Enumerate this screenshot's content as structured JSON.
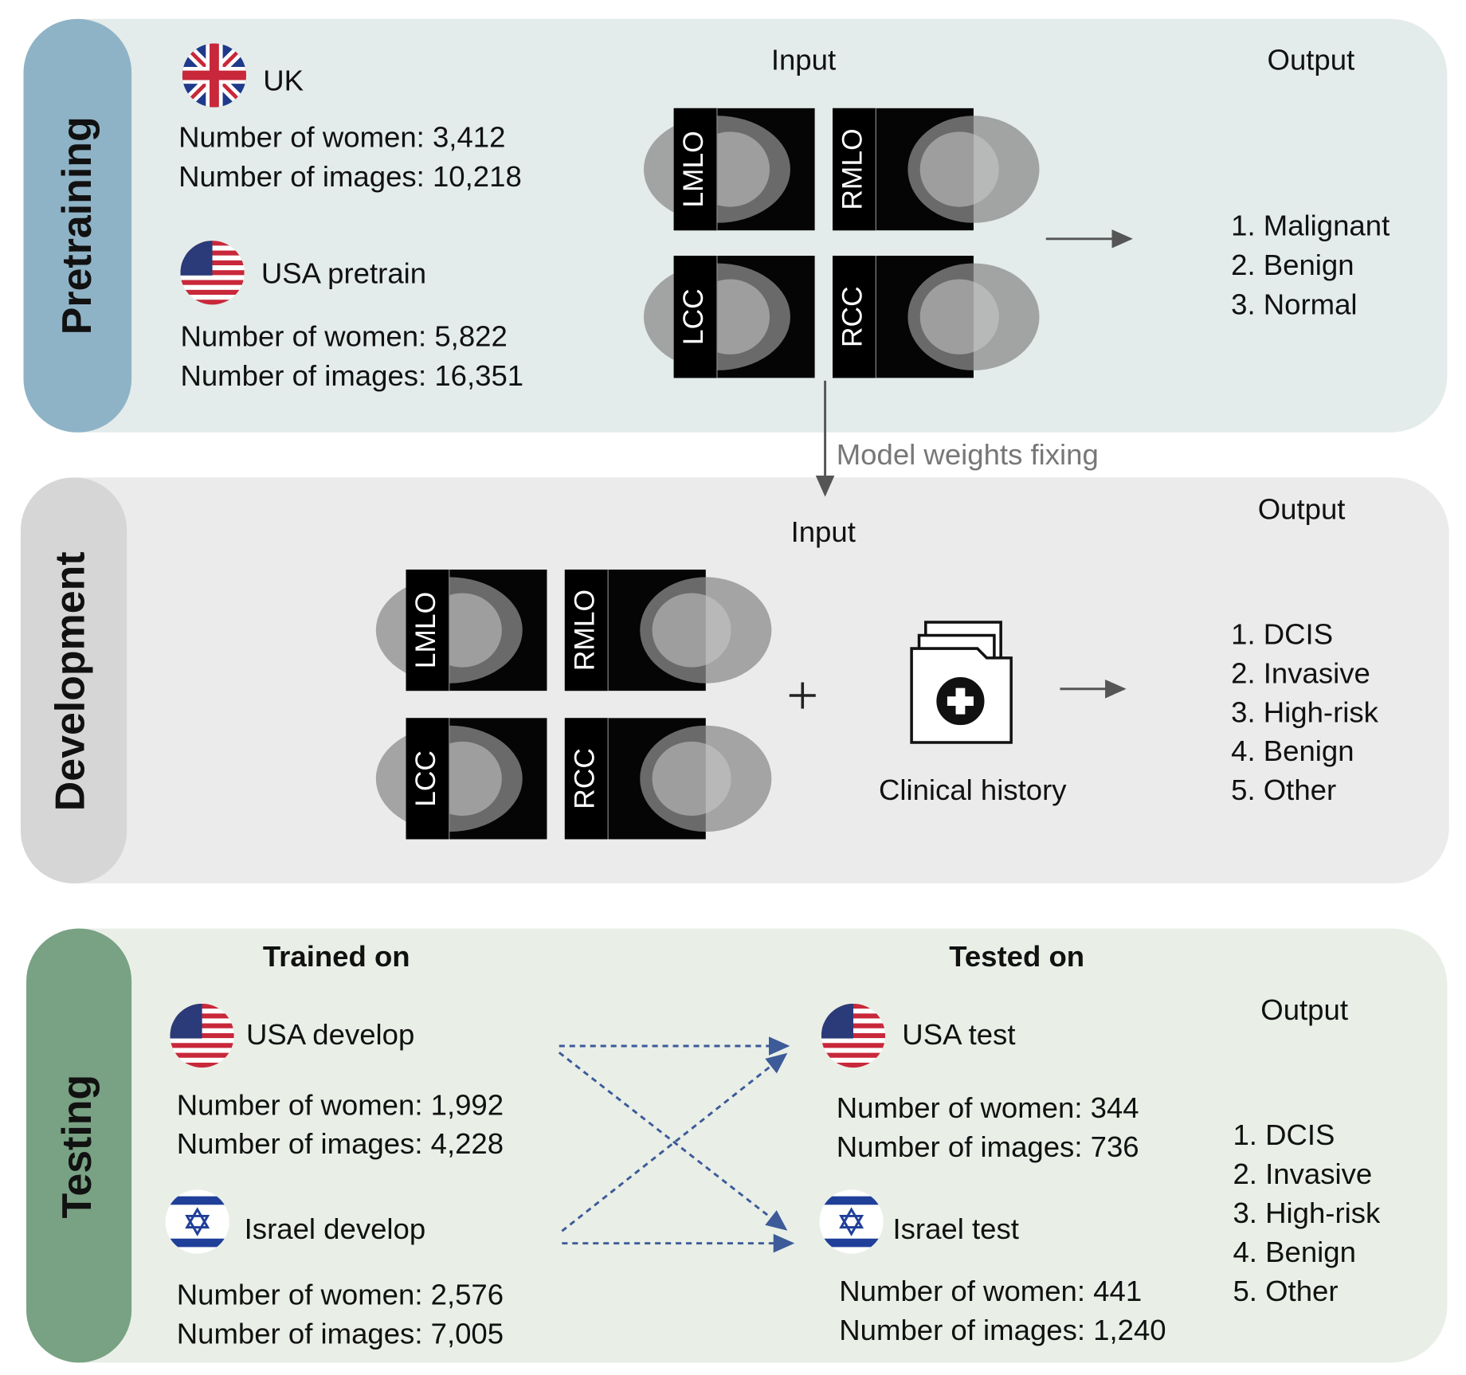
{
  "pretraining": {
    "label": "Pretraining",
    "input_title": "Input",
    "output_title": "Output",
    "datasets": [
      {
        "name": "UK",
        "lines": [
          "Number of women: 3,412",
          "Number of images: 10,218"
        ]
      },
      {
        "name": "USA pretrain",
        "lines": [
          "Number of women: 5,822",
          "Number of images: 16,351"
        ]
      }
    ],
    "views": [
      "LMLO",
      "RMLO",
      "LCC",
      "RCC"
    ],
    "outputs": [
      "1. Malignant",
      "2. Benign",
      "3. Normal"
    ]
  },
  "transition": "Model weights fixing",
  "development": {
    "label": "Development",
    "input_title": "Input",
    "output_title": "Output",
    "views": [
      "LMLO",
      "RMLO",
      "LCC",
      "RCC"
    ],
    "clinical": "Clinical history",
    "outputs": [
      "1. DCIS",
      "2. Invasive",
      "3. High-risk",
      "4. Benign",
      "5. Other"
    ]
  },
  "testing": {
    "label": "Testing",
    "trained_title": "Trained on",
    "tested_title": "Tested on",
    "output_title": "Output",
    "trained": [
      {
        "name": "USA develop",
        "lines": [
          "Number of women: 1,992",
          "Number of images: 4,228"
        ]
      },
      {
        "name": "Israel develop",
        "lines": [
          "Number of women: 2,576",
          "Number of images: 7,005"
        ]
      }
    ],
    "tested": [
      {
        "name": "USA test",
        "lines": [
          "Number of women: 344",
          "Number of images: 736"
        ]
      },
      {
        "name": "Israel test",
        "lines": [
          "Number of women: 441",
          "Number of images: 1,240"
        ]
      }
    ],
    "outputs": [
      "1. DCIS",
      "2. Invasive",
      "3. High-risk",
      "4. Benign",
      "5. Other"
    ]
  }
}
